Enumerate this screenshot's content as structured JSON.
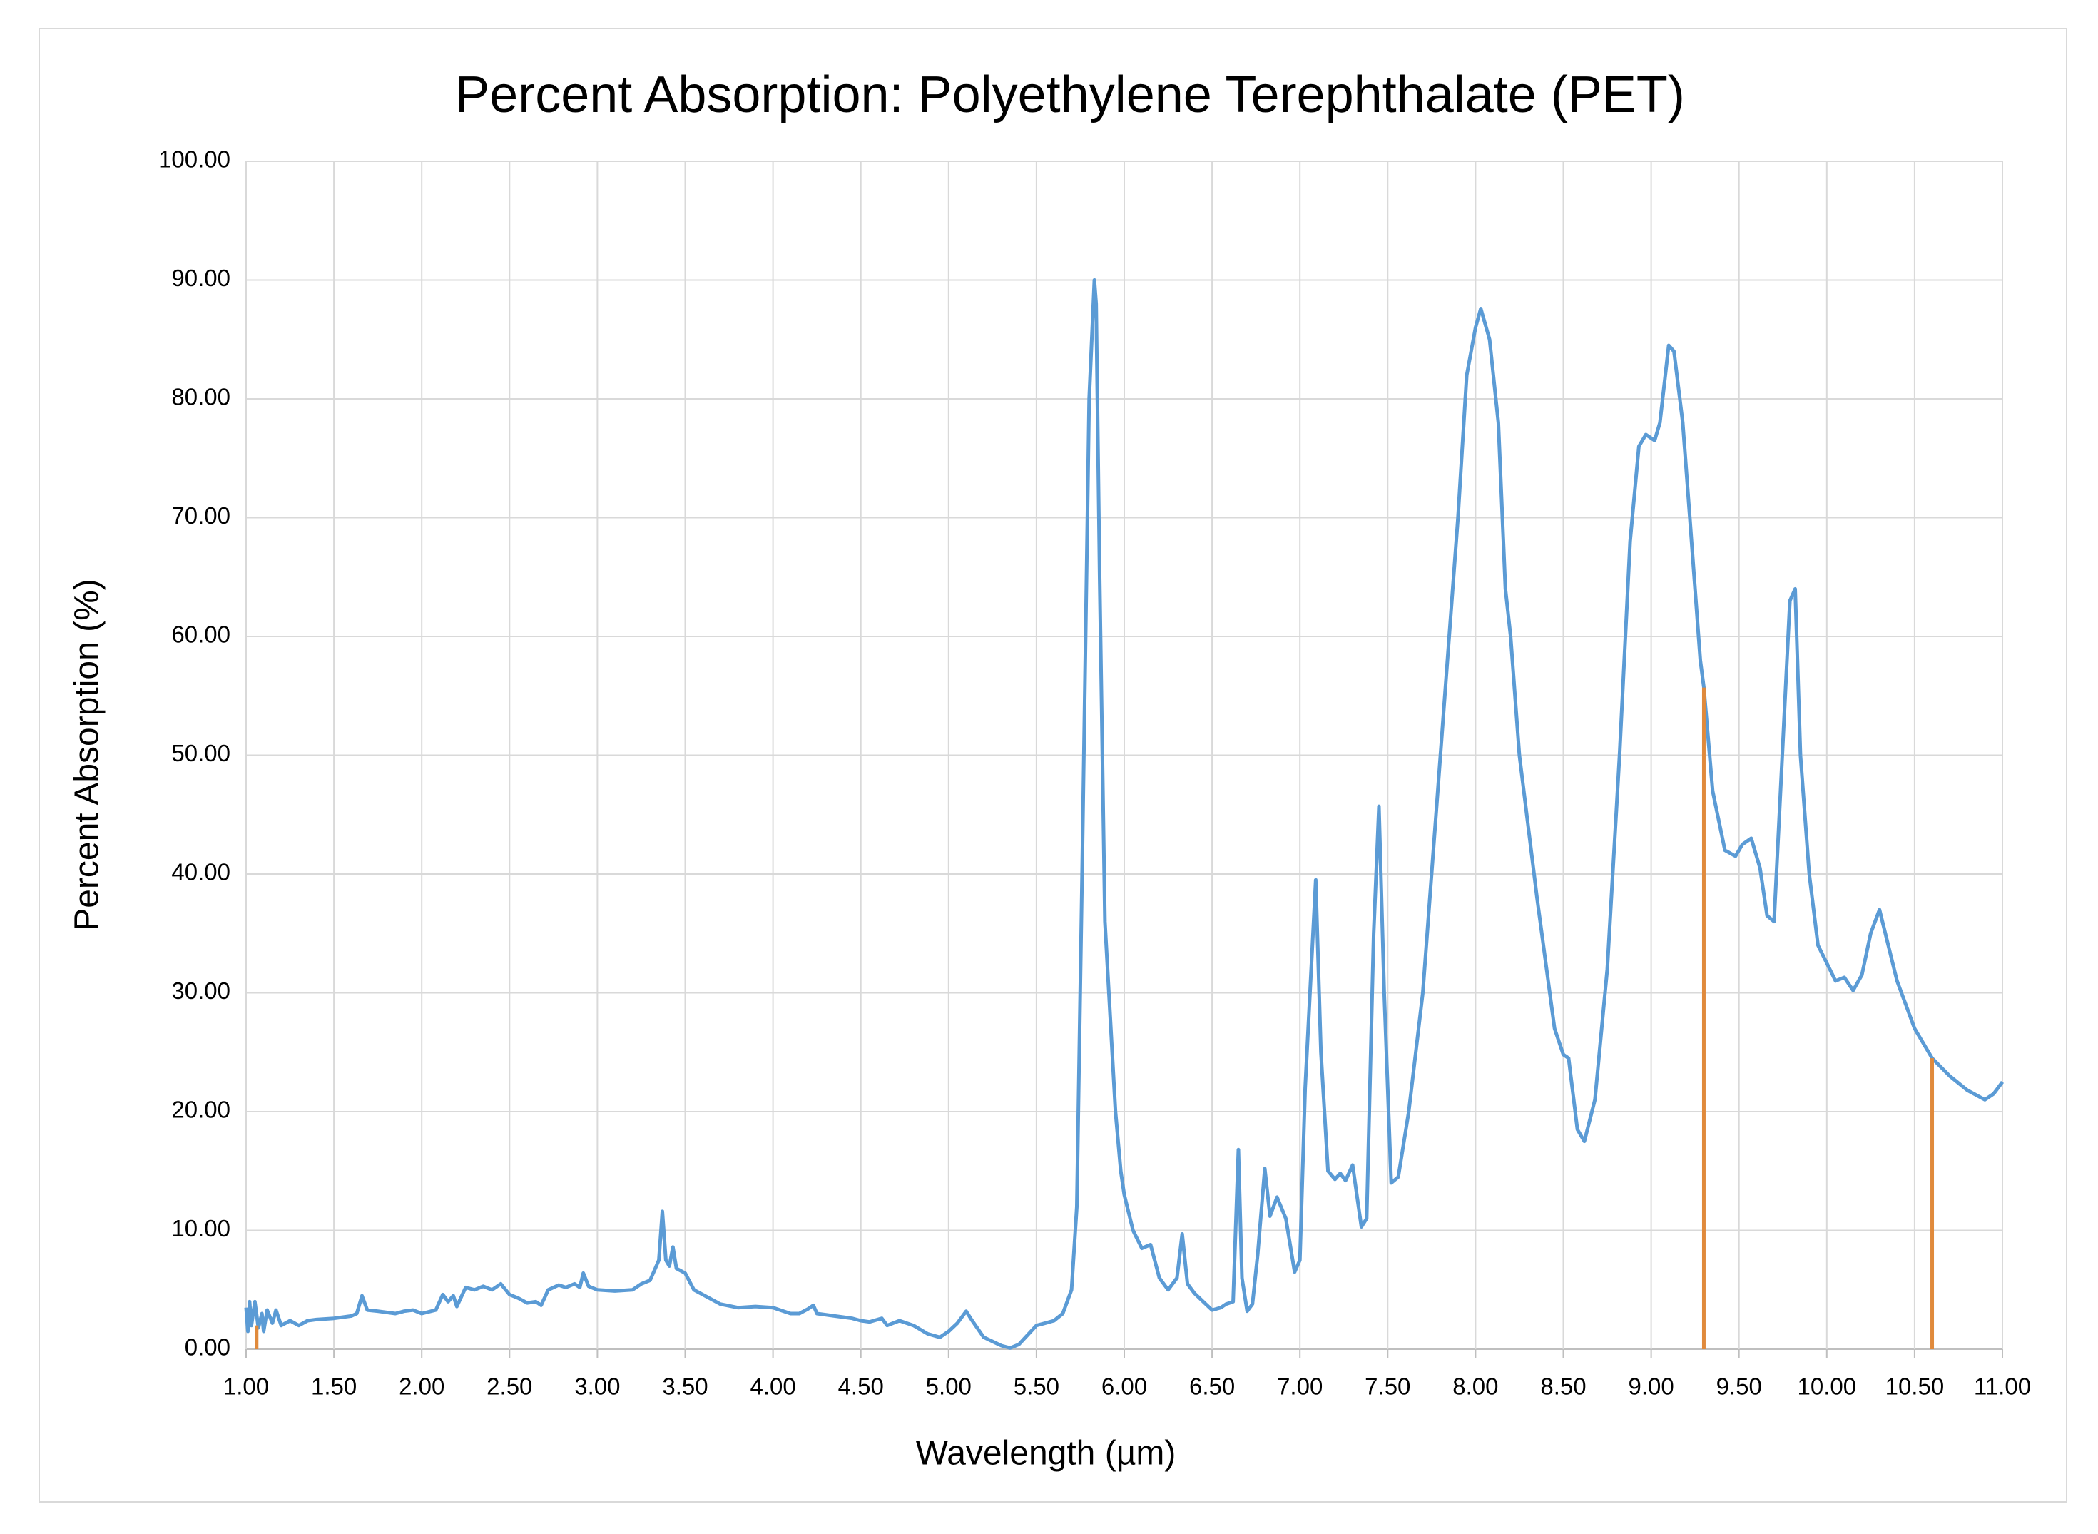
{
  "chart_data": {
    "type": "line",
    "title": "Percent Absorption: Polyethylene Terephthalate (PET)",
    "x_label": "Wavelength (µm)",
    "y_label": "Percent Absorption (%)",
    "xlim": [
      1,
      11
    ],
    "ylim": [
      0,
      100
    ],
    "grid": true,
    "xticks": [
      {
        "value": 1,
        "label": "1.00"
      },
      {
        "value": 1.5,
        "label": "1.50"
      },
      {
        "value": 2,
        "label": "2.00"
      },
      {
        "value": 2.5,
        "label": "2.50"
      },
      {
        "value": 3,
        "label": "3.00"
      },
      {
        "value": 3.5,
        "label": "3.50"
      },
      {
        "value": 4,
        "label": "4.00"
      },
      {
        "value": 4.5,
        "label": "4.50"
      },
      {
        "value": 5,
        "label": "5.00"
      },
      {
        "value": 5.5,
        "label": "5.50"
      },
      {
        "value": 6,
        "label": "6.00"
      },
      {
        "value": 6.5,
        "label": "6.50"
      },
      {
        "value": 7,
        "label": "7.00"
      },
      {
        "value": 7.5,
        "label": "7.50"
      },
      {
        "value": 8,
        "label": "8.00"
      },
      {
        "value": 8.5,
        "label": "8.50"
      },
      {
        "value": 9,
        "label": "9.00"
      },
      {
        "value": 9.5,
        "label": "9.50"
      },
      {
        "value": 10,
        "label": "10.00"
      },
      {
        "value": 10.5,
        "label": "10.50"
      },
      {
        "value": 11,
        "label": "11.00"
      }
    ],
    "yticks": [
      {
        "value": 0,
        "label": "0.00"
      },
      {
        "value": 10,
        "label": "10.00"
      },
      {
        "value": 20,
        "label": "20.00"
      },
      {
        "value": 30,
        "label": "30.00"
      },
      {
        "value": 40,
        "label": "40.00"
      },
      {
        "value": 50,
        "label": "50.00"
      },
      {
        "value": 60,
        "label": "60.00"
      },
      {
        "value": 70,
        "label": "70.00"
      },
      {
        "value": 80,
        "label": "80.00"
      },
      {
        "value": 90,
        "label": "90.00"
      },
      {
        "value": 100,
        "label": "100.00"
      }
    ],
    "series": [
      {
        "type": "line",
        "color": "#5b9bd5",
        "x": [
          1.0,
          1.01,
          1.02,
          1.03,
          1.05,
          1.07,
          1.09,
          1.1,
          1.12,
          1.15,
          1.17,
          1.2,
          1.25,
          1.3,
          1.35,
          1.4,
          1.5,
          1.6,
          1.63,
          1.66,
          1.69,
          1.75,
          1.85,
          1.9,
          1.95,
          2.0,
          2.08,
          2.12,
          2.15,
          2.18,
          2.2,
          2.25,
          2.3,
          2.35,
          2.4,
          2.45,
          2.5,
          2.55,
          2.6,
          2.65,
          2.68,
          2.72,
          2.78,
          2.82,
          2.87,
          2.9,
          2.92,
          2.95,
          3.0,
          3.1,
          3.2,
          3.25,
          3.3,
          3.33,
          3.35,
          3.37,
          3.39,
          3.41,
          3.43,
          3.45,
          3.5,
          3.55,
          3.6,
          3.7,
          3.8,
          3.9,
          4.0,
          4.1,
          4.15,
          4.2,
          4.23,
          4.25,
          4.35,
          4.4,
          4.45,
          4.5,
          4.55,
          4.62,
          4.65,
          4.72,
          4.8,
          4.88,
          4.95,
          5.0,
          5.05,
          5.1,
          5.13,
          5.2,
          5.3,
          5.35,
          5.4,
          5.45,
          5.5,
          5.55,
          5.6,
          5.65,
          5.7,
          5.73,
          5.76,
          5.8,
          5.83,
          5.84,
          5.86,
          5.89,
          5.92,
          5.95,
          5.98,
          6.0,
          6.05,
          6.1,
          6.15,
          6.2,
          6.25,
          6.3,
          6.33,
          6.36,
          6.4,
          6.45,
          6.5,
          6.55,
          6.58,
          6.62,
          6.65,
          6.67,
          6.7,
          6.73,
          6.76,
          6.8,
          6.83,
          6.87,
          6.92,
          6.97,
          7.0,
          7.03,
          7.09,
          7.12,
          7.16,
          7.2,
          7.23,
          7.26,
          7.3,
          7.35,
          7.38,
          7.42,
          7.45,
          7.48,
          7.52,
          7.56,
          7.62,
          7.7,
          7.8,
          7.9,
          7.95,
          8.0,
          8.03,
          8.08,
          8.13,
          8.17,
          8.2,
          8.25,
          8.35,
          8.45,
          8.5,
          8.53,
          8.58,
          8.62,
          8.68,
          8.75,
          8.82,
          8.88,
          8.93,
          8.97,
          9.02,
          9.05,
          9.1,
          9.13,
          9.18,
          9.22,
          9.28,
          9.3,
          9.35,
          9.42,
          9.48,
          9.52,
          9.57,
          9.62,
          9.66,
          9.7,
          9.74,
          9.79,
          9.82,
          9.85,
          9.9,
          9.95,
          10.05,
          10.1,
          10.15,
          10.2,
          10.25,
          10.3,
          10.35,
          10.4,
          10.5,
          10.6,
          10.7,
          10.8,
          10.9,
          10.95,
          11.0
        ],
        "values": [
          3.5,
          1.5,
          4.0,
          2.0,
          4.0,
          1.8,
          3.0,
          1.5,
          3.3,
          2.2,
          3.3,
          2.0,
          2.4,
          2.0,
          2.4,
          2.5,
          2.6,
          2.8,
          3.0,
          4.5,
          3.3,
          3.2,
          3.0,
          3.2,
          3.3,
          3.0,
          3.3,
          4.6,
          4.0,
          4.5,
          3.6,
          5.2,
          5.0,
          5.3,
          5.0,
          5.5,
          4.6,
          4.3,
          3.9,
          4.0,
          3.7,
          5.0,
          5.4,
          5.2,
          5.5,
          5.2,
          6.4,
          5.3,
          5.0,
          4.9,
          5.0,
          5.5,
          5.8,
          6.8,
          7.5,
          11.6,
          7.5,
          7.0,
          8.6,
          6.8,
          6.4,
          5.0,
          4.6,
          3.8,
          3.5,
          3.6,
          3.5,
          3.0,
          3.0,
          3.4,
          3.7,
          3.0,
          2.8,
          2.7,
          2.6,
          2.4,
          2.3,
          2.6,
          2.0,
          2.4,
          2.0,
          1.3,
          1.0,
          1.5,
          2.2,
          3.2,
          2.5,
          1.0,
          0.3,
          0.1,
          0.4,
          1.2,
          2.0,
          2.2,
          2.4,
          3.0,
          5.0,
          12.0,
          40.0,
          80.0,
          90.0,
          88.0,
          65.0,
          36.0,
          28.0,
          20.0,
          15.0,
          13.0,
          10.0,
          8.5,
          8.8,
          6.0,
          5.0,
          6.0,
          9.7,
          5.5,
          4.7,
          4.0,
          3.3,
          3.5,
          3.8,
          4.0,
          16.8,
          6.0,
          3.2,
          3.8,
          8.0,
          15.2,
          11.2,
          12.8,
          11.0,
          6.5,
          7.5,
          22.0,
          39.5,
          25.0,
          15.0,
          14.3,
          14.8,
          14.2,
          15.5,
          10.3,
          11.0,
          35.0,
          45.7,
          30.0,
          14.0,
          14.5,
          20.0,
          30.0,
          50.0,
          70.0,
          82.0,
          86.0,
          87.6,
          85.0,
          78.0,
          64.0,
          60.0,
          50.0,
          38.0,
          27.0,
          24.8,
          24.5,
          18.5,
          17.5,
          21.0,
          32.0,
          50.0,
          68.0,
          76.0,
          77.0,
          76.5,
          78.0,
          84.5,
          84.0,
          78.0,
          70.0,
          58.0,
          55.7,
          47.0,
          42.0,
          41.5,
          42.5,
          43.0,
          40.5,
          36.5,
          36.0,
          48.0,
          63.0,
          64.0,
          50.0,
          40.0,
          34.0,
          31.0,
          31.3,
          30.2,
          31.5,
          35.0,
          37.0,
          34.0,
          31.0,
          27.0,
          24.5,
          23.0,
          21.8,
          21.0,
          21.5,
          22.5
        ]
      },
      {
        "type": "stem",
        "color": "#e08a3c",
        "x": [
          1.06,
          9.3,
          10.6
        ],
        "values": [
          2.0,
          55.7,
          24.5
        ]
      }
    ]
  }
}
